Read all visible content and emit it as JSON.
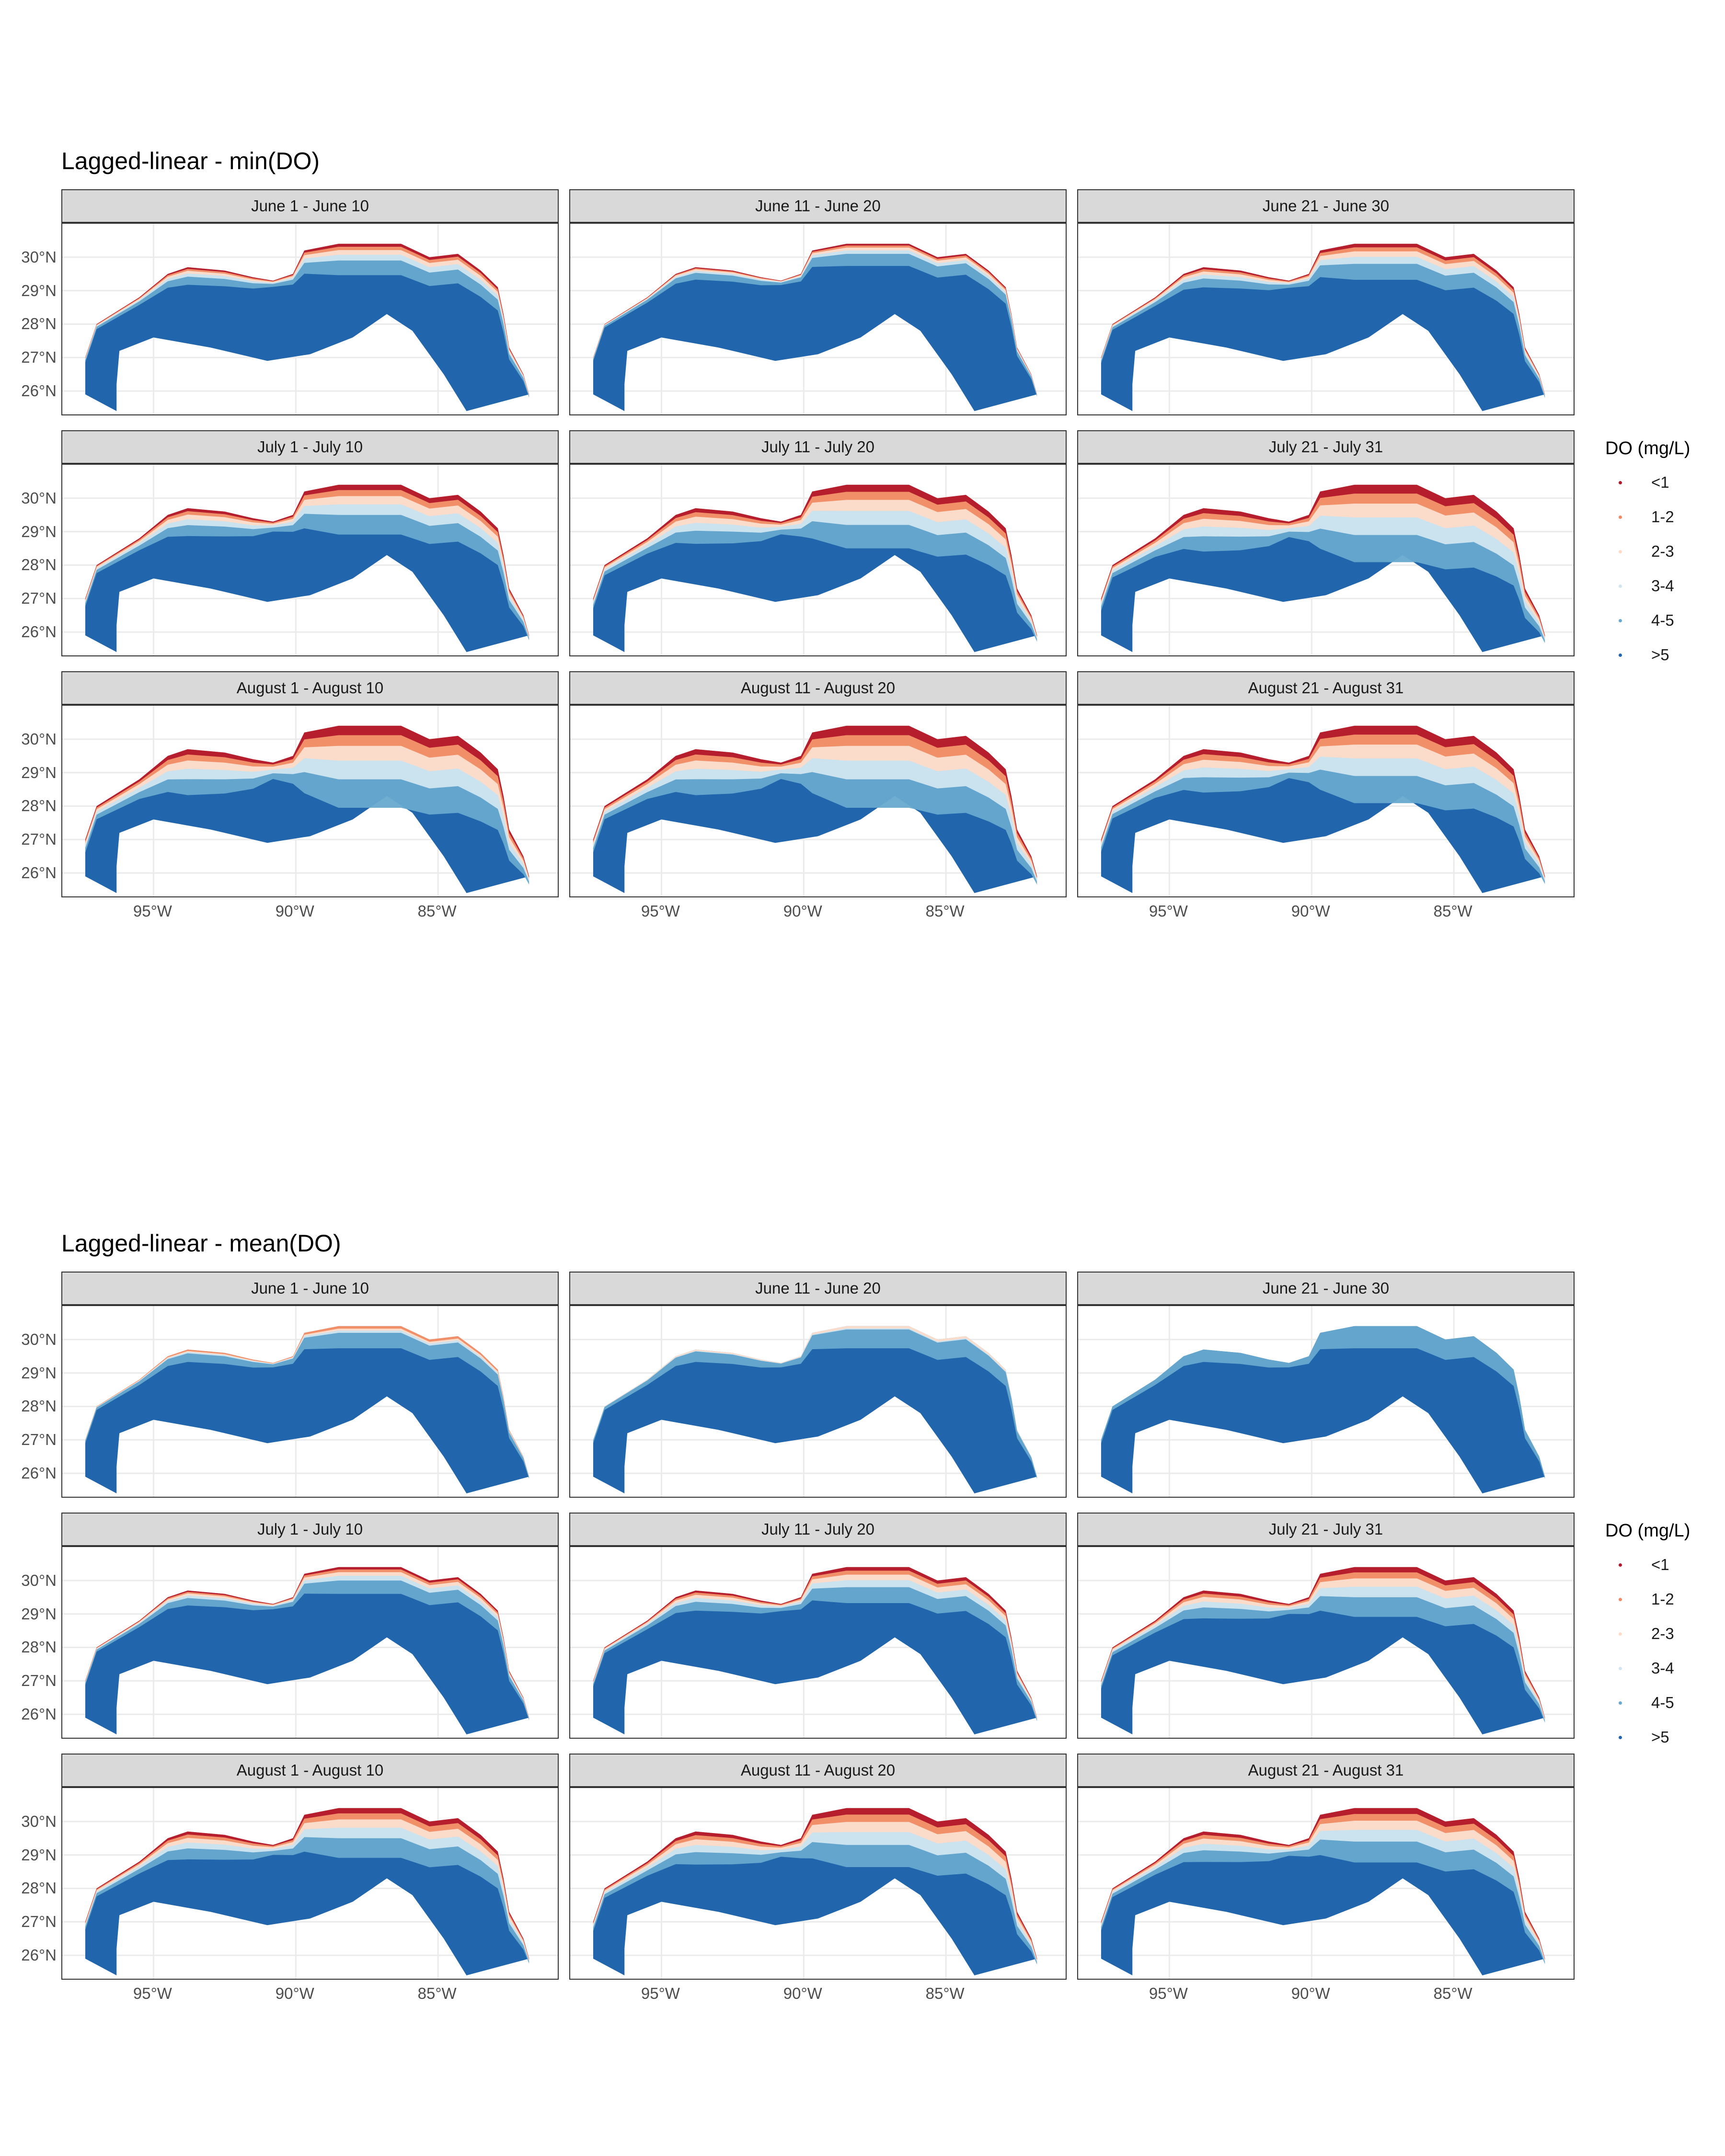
{
  "chart_data": [
    {
      "type": "map",
      "title": "Lagged-linear - min(DO)",
      "legend": {
        "title": "DO (mg/L)",
        "placement": "right",
        "classes": [
          {
            "label": "<1",
            "color": "#b2182b"
          },
          {
            "label": "1-2",
            "color": "#ef8a62"
          },
          {
            "label": "2-3",
            "color": "#fddbc7"
          },
          {
            "label": "3-4",
            "color": "#d1e5f0"
          },
          {
            "label": "4-5",
            "color": "#67a9cf"
          },
          {
            "label": ">5",
            "color": "#2166ac"
          }
        ]
      },
      "x_ticks": [
        {
          "label": "95°W",
          "value": -95
        },
        {
          "label": "90°W",
          "value": -90
        },
        {
          "label": "85°W",
          "value": -85
        }
      ],
      "y_ticks": [
        {
          "label": "30°N",
          "value": 30
        },
        {
          "label": "29°N",
          "value": 29
        },
        {
          "label": "28°N",
          "value": 28
        },
        {
          "label": "27°N",
          "value": 27
        },
        {
          "label": "26°N",
          "value": 26
        }
      ],
      "xlim": [
        -97.5,
        -81.5
      ],
      "ylim": [
        25.3,
        31.0
      ],
      "grid": true,
      "panels": [
        {
          "label": "June 1 - June 10",
          "level": 0.25
        },
        {
          "label": "June 11 - June 20",
          "level": 0.15
        },
        {
          "label": "June 21 - June 30",
          "level": 0.3
        },
        {
          "label": "July 1 - July 10",
          "level": 0.45
        },
        {
          "label": "July 11 - July 20",
          "level": 0.6
        },
        {
          "label": "July 21 - July 31",
          "level": 0.75
        },
        {
          "label": "August 1 - August 10",
          "level": 0.8
        },
        {
          "label": "August 11 - August 20",
          "level": 0.8
        },
        {
          "label": "August 21 - August 31",
          "level": 0.75
        }
      ]
    },
    {
      "type": "map",
      "title": "Lagged-linear - mean(DO)",
      "legend": {
        "title": "DO (mg/L)",
        "placement": "right",
        "classes": [
          {
            "label": "<1",
            "color": "#b2182b"
          },
          {
            "label": "1-2",
            "color": "#ef8a62"
          },
          {
            "label": "2-3",
            "color": "#fddbc7"
          },
          {
            "label": "3-4",
            "color": "#d1e5f0"
          },
          {
            "label": "4-5",
            "color": "#67a9cf"
          },
          {
            "label": ">5",
            "color": "#2166ac"
          }
        ]
      },
      "x_ticks": [
        {
          "label": "95°W",
          "value": -95
        },
        {
          "label": "90°W",
          "value": -90
        },
        {
          "label": "85°W",
          "value": -85
        }
      ],
      "y_ticks": [
        {
          "label": "30°N",
          "value": 30
        },
        {
          "label": "29°N",
          "value": 29
        },
        {
          "label": "28°N",
          "value": 28
        },
        {
          "label": "27°N",
          "value": 27
        },
        {
          "label": "26°N",
          "value": 26
        }
      ],
      "xlim": [
        -97.5,
        -81.5
      ],
      "ylim": [
        25.3,
        31.0
      ],
      "grid": true,
      "panels": [
        {
          "label": "June 1 - June 10",
          "level": 0.1
        },
        {
          "label": "June 11 - June 20",
          "level": 0.05
        },
        {
          "label": "June 21 - June 30",
          "level": 0.02
        },
        {
          "label": "July 1 - July 10",
          "level": 0.2
        },
        {
          "label": "July 11 - July 20",
          "level": 0.3
        },
        {
          "label": "July 21 - July 31",
          "level": 0.45
        },
        {
          "label": "August 1 - August 10",
          "level": 0.45
        },
        {
          "label": "August 11 - August 20",
          "level": 0.55
        },
        {
          "label": "August 21 - August 31",
          "level": 0.5
        }
      ]
    }
  ]
}
